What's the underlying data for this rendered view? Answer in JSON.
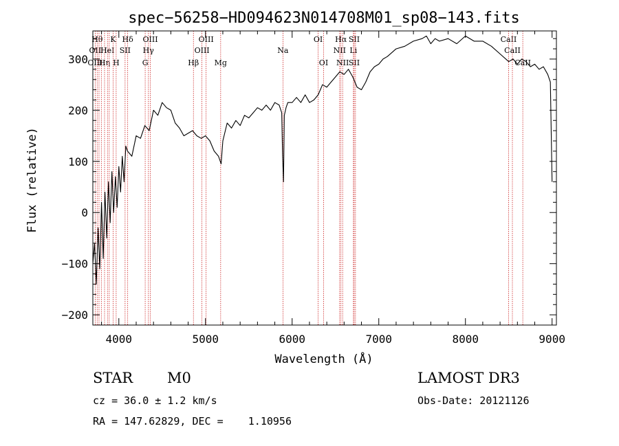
{
  "chart_data": {
    "type": "line",
    "title": "spec−56258−HD094623N014708M01_sp08−143.fits",
    "xlabel": "Wavelength (Å)",
    "ylabel": "Flux (relative)",
    "xlim": [
      3700,
      9050
    ],
    "ylim": [
      -220,
      355
    ],
    "xticks": [
      4000,
      5000,
      6000,
      7000,
      8000,
      9000
    ],
    "yticks": [
      -200,
      -100,
      0,
      100,
      200,
      300
    ],
    "ytick_labels": [
      "−200",
      "−100",
      "0",
      "100",
      "200",
      "300"
    ],
    "series": [
      {
        "name": "flux",
        "x": [
          3700,
          3720,
          3740,
          3760,
          3780,
          3800,
          3820,
          3840,
          3860,
          3880,
          3900,
          3920,
          3940,
          3960,
          3980,
          4000,
          4020,
          4040,
          4060,
          4080,
          4100,
          4150,
          4200,
          4250,
          4300,
          4350,
          4400,
          4450,
          4500,
          4550,
          4600,
          4650,
          4700,
          4750,
          4800,
          4850,
          4900,
          4950,
          5000,
          5050,
          5100,
          5150,
          5180,
          5200,
          5250,
          5300,
          5350,
          5400,
          5450,
          5500,
          5550,
          5600,
          5650,
          5700,
          5750,
          5800,
          5850,
          5880,
          5890,
          5900,
          5910,
          5930,
          5950,
          6000,
          6050,
          6100,
          6150,
          6200,
          6250,
          6300,
          6350,
          6400,
          6450,
          6500,
          6550,
          6600,
          6650,
          6700,
          6750,
          6800,
          6850,
          6900,
          6950,
          7000,
          7050,
          7100,
          7200,
          7300,
          7400,
          7500,
          7550,
          7600,
          7650,
          7700,
          7800,
          7900,
          8000,
          8100,
          8200,
          8300,
          8400,
          8500,
          8550,
          8600,
          8650,
          8700,
          8750,
          8800,
          8850,
          8900,
          8950,
          8980,
          9000
        ],
        "y": [
          -100,
          -60,
          -140,
          -30,
          -110,
          20,
          -90,
          40,
          -50,
          60,
          -20,
          80,
          0,
          70,
          10,
          90,
          40,
          110,
          60,
          130,
          120,
          110,
          150,
          145,
          170,
          160,
          200,
          190,
          215,
          205,
          200,
          175,
          165,
          150,
          155,
          160,
          150,
          145,
          150,
          140,
          120,
          110,
          95,
          140,
          175,
          165,
          180,
          170,
          190,
          185,
          195,
          205,
          200,
          210,
          200,
          215,
          210,
          195,
          110,
          60,
          190,
          205,
          215,
          215,
          225,
          215,
          230,
          215,
          220,
          230,
          250,
          245,
          255,
          265,
          275,
          270,
          280,
          265,
          245,
          240,
          255,
          275,
          285,
          290,
          300,
          305,
          320,
          325,
          335,
          340,
          345,
          330,
          340,
          335,
          340,
          330,
          345,
          335,
          335,
          325,
          310,
          295,
          300,
          290,
          300,
          295,
          285,
          290,
          280,
          285,
          270,
          255,
          60
        ],
        "color": "#000000"
      }
    ],
    "line_markers": [
      {
        "wavelength": 3727,
        "row1": "",
        "row2": "OII",
        "row3": "OIII"
      },
      {
        "wavelength": 3750,
        "row1": "Hθ",
        "row2": "",
        "row3": ""
      },
      {
        "wavelength": 3771,
        "row1": "",
        "row2": "",
        "row3": ""
      },
      {
        "wavelength": 3798,
        "row1": "",
        "row2": "",
        "row3": ""
      },
      {
        "wavelength": 3835,
        "row1": "",
        "row2": "",
        "row3": "Hη"
      },
      {
        "wavelength": 3869,
        "row1": "",
        "row2": "HeI",
        "row3": ""
      },
      {
        "wavelength": 3889,
        "row1": "",
        "row2": "",
        "row3": ""
      },
      {
        "wavelength": 3934,
        "row1": "K",
        "row2": "",
        "row3": ""
      },
      {
        "wavelength": 3969,
        "row1": "",
        "row2": "",
        "row3": "H"
      },
      {
        "wavelength": 4072,
        "row1": "",
        "row2": "SII",
        "row3": ""
      },
      {
        "wavelength": 4102,
        "row1": "Hδ",
        "row2": "",
        "row3": ""
      },
      {
        "wavelength": 4304,
        "row1": "",
        "row2": "",
        "row3": "G"
      },
      {
        "wavelength": 4341,
        "row1": "",
        "row2": "Hγ",
        "row3": ""
      },
      {
        "wavelength": 4363,
        "row1": "OIII",
        "row2": "",
        "row3": ""
      },
      {
        "wavelength": 4861,
        "row1": "",
        "row2": "",
        "row3": "Hβ"
      },
      {
        "wavelength": 4959,
        "row1": "",
        "row2": "OIII",
        "row3": ""
      },
      {
        "wavelength": 5007,
        "row1": "OIII",
        "row2": "",
        "row3": ""
      },
      {
        "wavelength": 5175,
        "row1": "",
        "row2": "",
        "row3": "Mg"
      },
      {
        "wavelength": 5894,
        "row1": "",
        "row2": "Na",
        "row3": ""
      },
      {
        "wavelength": 6300,
        "row1": "OI",
        "row2": "",
        "row3": ""
      },
      {
        "wavelength": 6363,
        "row1": "",
        "row2": "",
        "row3": "OI"
      },
      {
        "wavelength": 6548,
        "row1": "",
        "row2": "NII",
        "row3": ""
      },
      {
        "wavelength": 6563,
        "row1": "Hα",
        "row2": "",
        "row3": ""
      },
      {
        "wavelength": 6583,
        "row1": "",
        "row2": "",
        "row3": "NII"
      },
      {
        "wavelength": 6707,
        "row1": "",
        "row2": "Li",
        "row3": ""
      },
      {
        "wavelength": 6716,
        "row1": "SII",
        "row2": "",
        "row3": "SII"
      },
      {
        "wavelength": 6731,
        "row1": "",
        "row2": "",
        "row3": ""
      },
      {
        "wavelength": 8498,
        "row1": "CaII",
        "row2": "",
        "row3": ""
      },
      {
        "wavelength": 8542,
        "row1": "",
        "row2": "CaII",
        "row3": ""
      },
      {
        "wavelength": 8662,
        "row1": "",
        "row2": "",
        "row3": "CaII"
      }
    ],
    "marker_color": "#cc2222"
  },
  "info": {
    "object_class": "STAR",
    "subclass": "M0",
    "survey": "LAMOST DR3",
    "redshift_text": "cz = 36.0 ± 1.2 km/s",
    "obs_date_text": "Obs-Date: 20121126",
    "coords_text": "RA = 147.62829, DEC =    1.10956"
  }
}
